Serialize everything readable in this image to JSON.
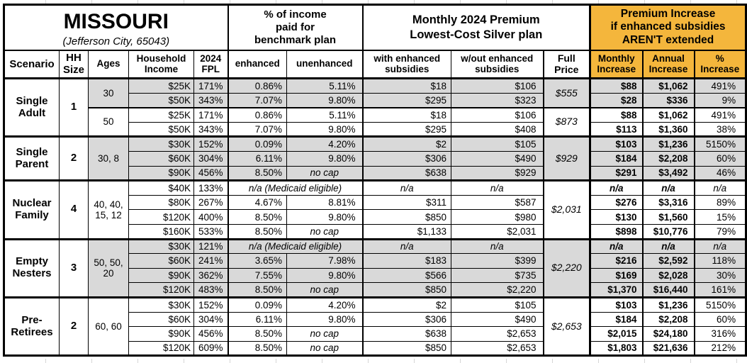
{
  "colors": {
    "accent_orange": "#F4B63C",
    "row_shade_gray": "#D9D9D9",
    "border_black": "#000000"
  },
  "title": {
    "state": "MISSOURI",
    "location": "(Jefferson City, 65043)"
  },
  "group_headers": {
    "pct_income": "% of income\npaid for\nbenchmark plan",
    "monthly_premium": "Monthly 2024 Premium\nLowest-Cost Silver plan",
    "premium_increase": "Premium Increase\nif enhanced subsidies\nAREN'T extended"
  },
  "columns": {
    "scenario": "Scenario",
    "hh_size": "HH\nSize",
    "ages": "Ages",
    "income": "Household\nIncome",
    "fpl": "2024\nFPL",
    "enhanced": "enhanced",
    "unenhanced": "unenhanced",
    "with_subsidies": "with enhanced\nsubsidies",
    "without_subsidies": "w/out enhanced\nsubsidies",
    "full_price": "Full\nPrice",
    "monthly_increase": "Monthly\nIncrease",
    "annual_increase": "Annual\nIncrease",
    "pct_increase": "%\nIncrease"
  },
  "special_labels": {
    "medicaid": "n/a (Medicaid eligible)",
    "no_cap": "no cap",
    "na": "n/a"
  },
  "scenarios": [
    {
      "name": "Single\nAdult",
      "hh_size": "1",
      "age_groups": [
        {
          "ages": "30",
          "shaded": true,
          "full_price": "$555",
          "rows": [
            {
              "income": "$25K",
              "fpl": "171%",
              "enhanced": "0.86%",
              "unenhanced": "5.11%",
              "with_sub": "$18",
              "without_sub": "$106",
              "monthly": "$88",
              "annual": "$1,062",
              "pct": "491%"
            },
            {
              "income": "$50K",
              "fpl": "343%",
              "enhanced": "7.07%",
              "unenhanced": "9.80%",
              "with_sub": "$295",
              "without_sub": "$323",
              "monthly": "$28",
              "annual": "$336",
              "pct": "9%"
            }
          ]
        },
        {
          "ages": "50",
          "shaded": false,
          "full_price": "$873",
          "rows": [
            {
              "income": "$25K",
              "fpl": "171%",
              "enhanced": "0.86%",
              "unenhanced": "5.11%",
              "with_sub": "$18",
              "without_sub": "$106",
              "monthly": "$88",
              "annual": "$1,062",
              "pct": "491%"
            },
            {
              "income": "$50K",
              "fpl": "343%",
              "enhanced": "7.07%",
              "unenhanced": "9.80%",
              "with_sub": "$295",
              "without_sub": "$408",
              "monthly": "$113",
              "annual": "$1,360",
              "pct": "38%"
            }
          ]
        }
      ]
    },
    {
      "name": "Single\nParent",
      "hh_size": "2",
      "age_groups": [
        {
          "ages": "30, 8",
          "shaded": true,
          "full_price": "$929",
          "rows": [
            {
              "income": "$30K",
              "fpl": "152%",
              "enhanced": "0.09%",
              "unenhanced": "4.20%",
              "with_sub": "$2",
              "without_sub": "$105",
              "monthly": "$103",
              "annual": "$1,236",
              "pct": "5150%"
            },
            {
              "income": "$60K",
              "fpl": "304%",
              "enhanced": "6.11%",
              "unenhanced": "9.80%",
              "with_sub": "$306",
              "without_sub": "$490",
              "monthly": "$184",
              "annual": "$2,208",
              "pct": "60%"
            },
            {
              "income": "$90K",
              "fpl": "456%",
              "enhanced": "8.50%",
              "unenhanced": "no cap",
              "with_sub": "$638",
              "without_sub": "$929",
              "monthly": "$291",
              "annual": "$3,492",
              "pct": "46%"
            }
          ]
        }
      ]
    },
    {
      "name": "Nuclear\nFamily",
      "hh_size": "4",
      "age_groups": [
        {
          "ages": "40, 40,\n15, 12",
          "shaded": false,
          "full_price": "$2,031",
          "rows": [
            {
              "income": "$40K",
              "fpl": "133%",
              "medicaid_note": "n/a (Medicaid eligible)",
              "with_sub": "n/a",
              "without_sub": "n/a",
              "monthly": "n/a",
              "annual": "n/a",
              "pct": "n/a"
            },
            {
              "income": "$80K",
              "fpl": "267%",
              "enhanced": "4.67%",
              "unenhanced": "8.81%",
              "with_sub": "$311",
              "without_sub": "$587",
              "monthly": "$276",
              "annual": "$3,316",
              "pct": "89%"
            },
            {
              "income": "$120K",
              "fpl": "400%",
              "enhanced": "8.50%",
              "unenhanced": "9.80%",
              "with_sub": "$850",
              "without_sub": "$980",
              "monthly": "$130",
              "annual": "$1,560",
              "pct": "15%"
            },
            {
              "income": "$160K",
              "fpl": "533%",
              "enhanced": "8.50%",
              "unenhanced": "no cap",
              "with_sub": "$1,133",
              "without_sub": "$2,031",
              "monthly": "$898",
              "annual": "$10,776",
              "pct": "79%"
            }
          ]
        }
      ]
    },
    {
      "name": "Empty\nNesters",
      "hh_size": "3",
      "age_groups": [
        {
          "ages": "50, 50,\n20",
          "shaded": true,
          "full_price": "$2,220",
          "rows": [
            {
              "income": "$30K",
              "fpl": "121%",
              "medicaid_note": "n/a (Medicaid eligible)",
              "with_sub": "n/a",
              "without_sub": "n/a",
              "monthly": "n/a",
              "annual": "n/a",
              "pct": "n/a"
            },
            {
              "income": "$60K",
              "fpl": "241%",
              "enhanced": "3.65%",
              "unenhanced": "7.98%",
              "with_sub": "$183",
              "without_sub": "$399",
              "monthly": "$216",
              "annual": "$2,592",
              "pct": "118%"
            },
            {
              "income": "$90K",
              "fpl": "362%",
              "enhanced": "7.55%",
              "unenhanced": "9.80%",
              "with_sub": "$566",
              "without_sub": "$735",
              "monthly": "$169",
              "annual": "$2,028",
              "pct": "30%"
            },
            {
              "income": "$120K",
              "fpl": "483%",
              "enhanced": "8.50%",
              "unenhanced": "no cap",
              "with_sub": "$850",
              "without_sub": "$2,220",
              "monthly": "$1,370",
              "annual": "$16,440",
              "pct": "161%"
            }
          ]
        }
      ]
    },
    {
      "name": "Pre-\nRetirees",
      "hh_size": "2",
      "age_groups": [
        {
          "ages": "60, 60",
          "shaded": false,
          "full_price": "$2,653",
          "rows": [
            {
              "income": "$30K",
              "fpl": "152%",
              "enhanced": "0.09%",
              "unenhanced": "4.20%",
              "with_sub": "$2",
              "without_sub": "$105",
              "monthly": "$103",
              "annual": "$1,236",
              "pct": "5150%"
            },
            {
              "income": "$60K",
              "fpl": "304%",
              "enhanced": "6.11%",
              "unenhanced": "9.80%",
              "with_sub": "$306",
              "without_sub": "$490",
              "monthly": "$184",
              "annual": "$2,208",
              "pct": "60%"
            },
            {
              "income": "$90K",
              "fpl": "456%",
              "enhanced": "8.50%",
              "unenhanced": "no cap",
              "with_sub": "$638",
              "without_sub": "$2,653",
              "monthly": "$2,015",
              "annual": "$24,180",
              "pct": "316%"
            },
            {
              "income": "$120K",
              "fpl": "609%",
              "enhanced": "8.50%",
              "unenhanced": "no cap",
              "with_sub": "$850",
              "without_sub": "$2,653",
              "monthly": "$1,803",
              "annual": "$21,636",
              "pct": "212%"
            }
          ]
        }
      ]
    }
  ]
}
